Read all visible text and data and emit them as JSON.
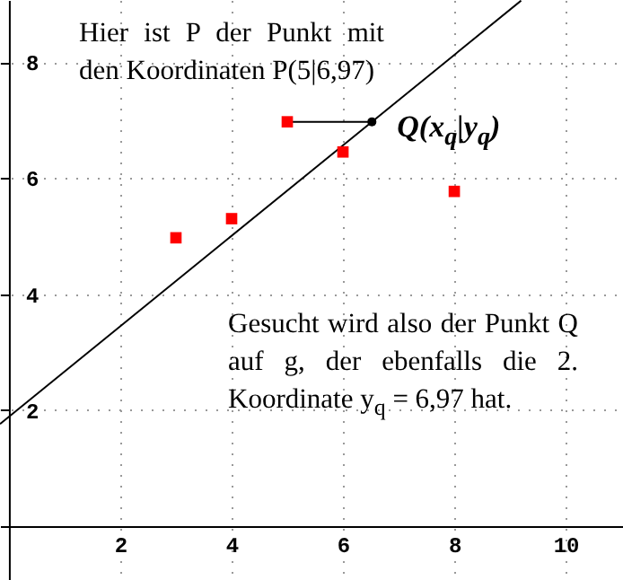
{
  "chart_data": {
    "type": "scatter",
    "xlim": [
      -0.16,
      11.03
    ],
    "ylim": [
      -0.93,
      9.07
    ],
    "xticks": [
      2,
      4,
      6,
      8,
      10
    ],
    "yticks": [
      2,
      4,
      6,
      8
    ],
    "grid": true,
    "series": [
      {
        "type": "line",
        "color": "#000000",
        "x": [
          -0.16,
          9.2
        ],
        "values": [
          1.76,
          9.06
        ],
        "marker": "none"
      },
      {
        "type": "line",
        "color": "#000000",
        "x": [
          5,
          6.52
        ],
        "values": [
          6.97,
          6.97
        ],
        "marker": "none"
      },
      {
        "color": "#ff0000",
        "x": [
          3,
          4,
          5,
          6,
          8
        ],
        "values": [
          4.97,
          5.3,
          6.97,
          6.45,
          5.77
        ],
        "marker": "square"
      },
      {
        "color": "#000000",
        "x": [
          6.52
        ],
        "values": [
          6.97
        ],
        "marker": "circle"
      }
    ],
    "annotations": [
      "Hier ist P der Punkt mit den Koordinaten P(5|6,97)",
      {
        "text": "Q(x$_{q}$|y$_{q}$)",
        "x": 6.52,
        "y": 6.97
      },
      "Gesucht wird also der Punkt Q auf g, der ebenfalls die 2. Koordinate y$_{q}$ = 6,97 hat."
    ]
  }
}
